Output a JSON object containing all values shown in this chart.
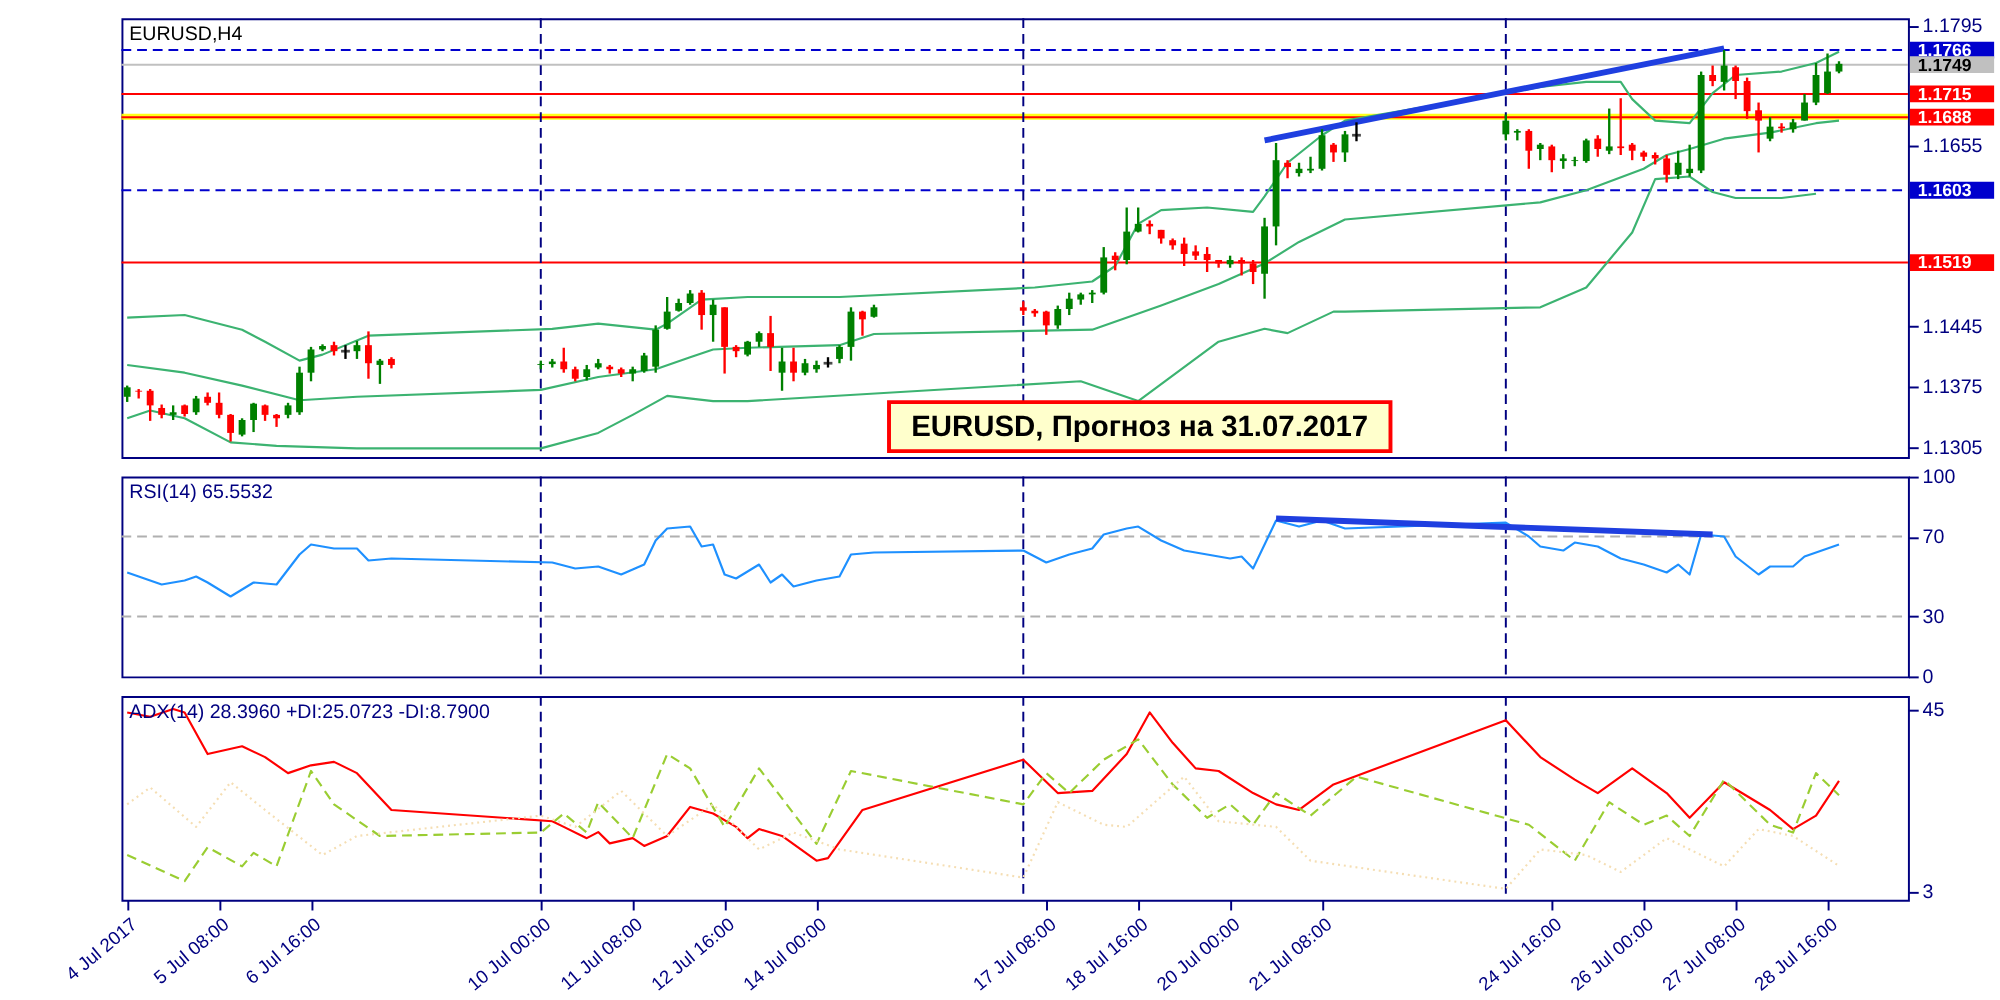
{
  "chart_data": [
    {
      "type": "candlestick",
      "title": "EURUSD,H4",
      "x": [
        "2017-07-04T00:00",
        "2017-07-04T04:00",
        "2017-07-04T08:00",
        "2017-07-04T12:00",
        "2017-07-04T16:00",
        "2017-07-04T20:00",
        "2017-07-05T00:00",
        "2017-07-05T04:00",
        "2017-07-05T08:00",
        "2017-07-05T12:00",
        "2017-07-05T16:00",
        "2017-07-05T20:00",
        "2017-07-06T00:00",
        "2017-07-06T04:00",
        "2017-07-06T08:00",
        "2017-07-06T12:00",
        "2017-07-06T16:00",
        "2017-07-06T20:00",
        "2017-07-07T00:00",
        "2017-07-07T04:00",
        "2017-07-07T08:00",
        "2017-07-07T12:00",
        "2017-07-07T16:00",
        "2017-07-07T20:00",
        "2017-07-10T00:00",
        "2017-07-10T04:00",
        "2017-07-10T08:00",
        "2017-07-10T12:00",
        "2017-07-10T16:00",
        "2017-07-10T20:00",
        "2017-07-11T00:00",
        "2017-07-11T04:00",
        "2017-07-11T08:00",
        "2017-07-11T12:00",
        "2017-07-11T16:00",
        "2017-07-11T20:00",
        "2017-07-12T00:00",
        "2017-07-12T04:00",
        "2017-07-12T08:00",
        "2017-07-12T12:00",
        "2017-07-12T16:00",
        "2017-07-12T20:00",
        "2017-07-13T00:00",
        "2017-07-13T04:00",
        "2017-07-13T08:00",
        "2017-07-13T12:00",
        "2017-07-13T16:00",
        "2017-07-13T20:00",
        "2017-07-14T00:00",
        "2017-07-14T04:00",
        "2017-07-14T08:00",
        "2017-07-14T12:00",
        "2017-07-14T16:00",
        "2017-07-14T20:00",
        "2017-07-17T00:00",
        "2017-07-17T04:00",
        "2017-07-17T08:00",
        "2017-07-17T12:00",
        "2017-07-17T16:00",
        "2017-07-17T20:00",
        "2017-07-18T00:00",
        "2017-07-18T04:00",
        "2017-07-18T08:00",
        "2017-07-18T12:00",
        "2017-07-18T16:00",
        "2017-07-18T20:00",
        "2017-07-19T00:00",
        "2017-07-19T04:00",
        "2017-07-19T08:00",
        "2017-07-19T12:00",
        "2017-07-19T16:00",
        "2017-07-19T20:00",
        "2017-07-20T00:00",
        "2017-07-20T04:00",
        "2017-07-20T08:00",
        "2017-07-20T12:00",
        "2017-07-20T16:00",
        "2017-07-20T20:00",
        "2017-07-21T00:00",
        "2017-07-21T04:00",
        "2017-07-21T08:00",
        "2017-07-21T12:00",
        "2017-07-21T16:00",
        "2017-07-21T20:00",
        "2017-07-24T00:00",
        "2017-07-24T04:00",
        "2017-07-24T08:00",
        "2017-07-24T12:00",
        "2017-07-24T16:00",
        "2017-07-24T20:00",
        "2017-07-25T00:00",
        "2017-07-25T04:00",
        "2017-07-25T08:00",
        "2017-07-25T12:00",
        "2017-07-25T16:00",
        "2017-07-25T20:00",
        "2017-07-26T00:00",
        "2017-07-26T04:00",
        "2017-07-26T08:00",
        "2017-07-26T12:00",
        "2017-07-26T16:00",
        "2017-07-26T20:00",
        "2017-07-27T00:00",
        "2017-07-27T04:00",
        "2017-07-27T08:00",
        "2017-07-27T12:00",
        "2017-07-27T16:00",
        "2017-07-27T20:00",
        "2017-07-28T00:00",
        "2017-07-28T04:00",
        "2017-07-28T08:00",
        "2017-07-28T12:00",
        "2017-07-28T16:00",
        "2017-07-28T20:00"
      ],
      "ohlc": [
        [
          1.1363,
          1.1376,
          1.1357,
          1.1374
        ],
        [
          1.137,
          1.1372,
          1.1361,
          1.1369
        ],
        [
          1.137,
          1.1372,
          1.1335,
          1.1353
        ],
        [
          1.135,
          1.1354,
          1.1338,
          1.1342
        ],
        [
          1.1342,
          1.1353,
          1.1336,
          1.1345
        ],
        [
          1.1353,
          1.1354,
          1.134,
          1.1343
        ],
        [
          1.1345,
          1.1364,
          1.1342,
          1.1361
        ],
        [
          1.1363,
          1.1368,
          1.1353,
          1.1356
        ],
        [
          1.1356,
          1.1368,
          1.1338,
          1.1342
        ],
        [
          1.1342,
          1.1343,
          1.1311,
          1.1321
        ],
        [
          1.1319,
          1.1338,
          1.1317,
          1.1336
        ],
        [
          1.1336,
          1.1356,
          1.1322,
          1.1355
        ],
        [
          1.1353,
          1.1354,
          1.1335,
          1.1342
        ],
        [
          1.1342,
          1.1343,
          1.1328,
          1.1338
        ],
        [
          1.1342,
          1.1356,
          1.1338,
          1.1353
        ],
        [
          1.1345,
          1.1398,
          1.1342,
          1.1391
        ],
        [
          1.1391,
          1.1421,
          1.1381,
          1.1418
        ],
        [
          1.1418,
          1.1424,
          1.1416,
          1.1422
        ],
        [
          1.1423,
          1.1427,
          1.1411,
          1.1416
        ],
        [
          1.1416,
          1.1423,
          1.1407,
          1.1416
        ],
        [
          1.1416,
          1.1428,
          1.1407,
          1.1423
        ],
        [
          1.1423,
          1.1439,
          1.1384,
          1.1402
        ],
        [
          1.14,
          1.1407,
          1.1378,
          1.1405
        ],
        [
          1.1407,
          1.1409,
          1.1396,
          1.14
        ],
        [
          1.14,
          1.1405,
          1.1395,
          1.1401
        ],
        [
          1.1401,
          1.1407,
          1.1397,
          1.1404
        ],
        [
          1.1404,
          1.142,
          1.1391,
          1.1395
        ],
        [
          1.1395,
          1.1398,
          1.1381,
          1.1384
        ],
        [
          1.1386,
          1.14,
          1.1382,
          1.1395
        ],
        [
          1.1397,
          1.1407,
          1.1395,
          1.1402
        ],
        [
          1.1398,
          1.14,
          1.139,
          1.1395
        ],
        [
          1.1395,
          1.1397,
          1.1386,
          1.139
        ],
        [
          1.139,
          1.1398,
          1.1381,
          1.1395
        ],
        [
          1.1393,
          1.1414,
          1.1391,
          1.1411
        ],
        [
          1.1398,
          1.1446,
          1.1391,
          1.1441
        ],
        [
          1.1442,
          1.1479,
          1.1441,
          1.1462
        ],
        [
          1.1463,
          1.1477,
          1.1462,
          1.1472
        ],
        [
          1.1472,
          1.1487,
          1.147,
          1.1483
        ],
        [
          1.1484,
          1.1487,
          1.1441,
          1.1458
        ],
        [
          1.1458,
          1.1476,
          1.1427,
          1.147
        ],
        [
          1.1467,
          1.1467,
          1.139,
          1.1421
        ],
        [
          1.1421,
          1.1423,
          1.1409,
          1.1416
        ],
        [
          1.1412,
          1.1428,
          1.141,
          1.1427
        ],
        [
          1.1427,
          1.1439,
          1.1421,
          1.1437
        ],
        [
          1.1437,
          1.1457,
          1.1393,
          1.1421
        ],
        [
          1.1391,
          1.142,
          1.137,
          1.1404
        ],
        [
          1.1404,
          1.142,
          1.1381,
          1.1391
        ],
        [
          1.1391,
          1.1407,
          1.1388,
          1.1402
        ],
        [
          1.1395,
          1.1405,
          1.1391,
          1.14
        ],
        [
          1.1402,
          1.1409,
          1.1397,
          1.1402
        ],
        [
          1.1407,
          1.1423,
          1.1402,
          1.1421
        ],
        [
          1.1421,
          1.1467,
          1.1405,
          1.1462
        ],
        [
          1.1462,
          1.1463,
          1.1434,
          1.1453
        ],
        [
          1.1456,
          1.147,
          1.1455,
          1.1467
        ],
        [
          1.1467,
          1.1474,
          1.1458,
          1.1463
        ],
        [
          1.1463,
          1.1465,
          1.1456,
          1.146
        ],
        [
          1.1462,
          1.1463,
          1.1435,
          1.1446
        ],
        [
          1.1446,
          1.1469,
          1.1442,
          1.1465
        ],
        [
          1.1465,
          1.1484,
          1.1458,
          1.1477
        ],
        [
          1.1476,
          1.1484,
          1.147,
          1.1482
        ],
        [
          1.1482,
          1.1487,
          1.1472,
          1.1484
        ],
        [
          1.1484,
          1.1537,
          1.1482,
          1.1525
        ],
        [
          1.1527,
          1.1531,
          1.151,
          1.1522
        ],
        [
          1.1522,
          1.1583,
          1.1517,
          1.1555
        ],
        [
          1.1555,
          1.1583,
          1.1554,
          1.1564
        ],
        [
          1.1564,
          1.1568,
          1.1552,
          1.1561
        ],
        [
          1.1557,
          1.1557,
          1.1541,
          1.1547
        ],
        [
          1.1545,
          1.1547,
          1.1534,
          1.1539
        ],
        [
          1.1541,
          1.1548,
          1.1515,
          1.1529
        ],
        [
          1.1532,
          1.1539,
          1.1522,
          1.1527
        ],
        [
          1.1529,
          1.1537,
          1.1508,
          1.1522
        ],
        [
          1.1522,
          1.1522,
          1.1513,
          1.1518
        ],
        [
          1.1517,
          1.1527,
          1.1513,
          1.1522
        ],
        [
          1.1522,
          1.1525,
          1.1504,
          1.1518
        ],
        [
          1.1518,
          1.1522,
          1.1494,
          1.1508
        ],
        [
          1.1506,
          1.1571,
          1.1477,
          1.1561
        ],
        [
          1.1561,
          1.1658,
          1.1539,
          1.1638
        ],
        [
          1.1635,
          1.1638,
          1.1617,
          1.163
        ],
        [
          1.1623,
          1.1635,
          1.1619,
          1.1628
        ],
        [
          1.1626,
          1.1642,
          1.1623,
          1.1628
        ],
        [
          1.1628,
          1.1674,
          1.1626,
          1.1667
        ],
        [
          1.1656,
          1.1658,
          1.1636,
          1.1647
        ],
        [
          1.1647,
          1.1672,
          1.1636,
          1.1668
        ],
        [
          1.1667,
          1.1682,
          1.166,
          1.1667
        ],
        [
          1.1668,
          1.1691,
          1.1661,
          1.1684
        ],
        [
          1.167,
          1.1674,
          1.1661,
          1.1672
        ],
        [
          1.1672,
          1.1674,
          1.1628,
          1.1649
        ],
        [
          1.1651,
          1.1658,
          1.1638,
          1.1656
        ],
        [
          1.1654,
          1.1656,
          1.1624,
          1.1638
        ],
        [
          1.1637,
          1.1645,
          1.1628,
          1.164
        ],
        [
          1.1637,
          1.1642,
          1.1631,
          1.1638
        ],
        [
          1.1637,
          1.1663,
          1.1635,
          1.1661
        ],
        [
          1.1663,
          1.1667,
          1.1642,
          1.1651
        ],
        [
          1.1649,
          1.1698,
          1.1645,
          1.1654
        ],
        [
          1.1654,
          1.171,
          1.1644,
          1.1652
        ],
        [
          1.1656,
          1.1658,
          1.1638,
          1.1649
        ],
        [
          1.1647,
          1.1649,
          1.1637,
          1.1642
        ],
        [
          1.1644,
          1.1647,
          1.1633,
          1.164
        ],
        [
          1.164,
          1.1644,
          1.1612,
          1.1621
        ],
        [
          1.1621,
          1.1649,
          1.1616,
          1.1635
        ],
        [
          1.1623,
          1.1656,
          1.1619,
          1.1628
        ],
        [
          1.1626,
          1.1741,
          1.1623,
          1.1737
        ],
        [
          1.1737,
          1.1748,
          1.1724,
          1.173
        ],
        [
          1.1729,
          1.1766,
          1.1719,
          1.1748
        ],
        [
          1.1746,
          1.1748,
          1.1709,
          1.173
        ],
        [
          1.173,
          1.1734,
          1.1686,
          1.1695
        ],
        [
          1.1696,
          1.1705,
          1.1647,
          1.1684
        ],
        [
          1.1663,
          1.1688,
          1.166,
          1.1677
        ],
        [
          1.1677,
          1.1681,
          1.167,
          1.1675
        ],
        [
          1.1674,
          1.1686,
          1.167,
          1.1682
        ],
        [
          1.1684,
          1.1715,
          1.1684,
          1.1705
        ],
        [
          1.1705,
          1.1751,
          1.1702,
          1.1737
        ],
        [
          1.1716,
          1.1762,
          1.1715,
          1.1741
        ],
        [
          1.1741,
          1.1753,
          1.1739,
          1.175
        ]
      ],
      "colors": [
        "#008000",
        "#ff0000",
        "#ff0000",
        "#ff0000",
        "#008000",
        "#ff0000",
        "#008000",
        "#ff0000",
        "#ff0000",
        "#ff0000",
        "#008000",
        "#008000",
        "#ff0000",
        "#ff0000",
        "#008000",
        "#008000",
        "#008000",
        "#008000",
        "#ff0000",
        "#000000",
        "#008000",
        "#ff0000",
        "#008000",
        "#ff0000",
        "#008000",
        "#008000",
        "#ff0000",
        "#ff0000",
        "#008000",
        "#008000",
        "#ff0000",
        "#ff0000",
        "#008000",
        "#008000",
        "#008000",
        "#008000",
        "#008000",
        "#008000",
        "#ff0000",
        "#008000",
        "#ff0000",
        "#ff0000",
        "#008000",
        "#008000",
        "#ff0000",
        "#008000",
        "#ff0000",
        "#008000",
        "#008000",
        "#000000",
        "#008000",
        "#008000",
        "#ff0000",
        "#008000",
        "#ff0000",
        "#ff0000",
        "#ff0000",
        "#008000",
        "#008000",
        "#008000",
        "#008000",
        "#008000",
        "#ff0000",
        "#008000",
        "#008000",
        "#ff0000",
        "#ff0000",
        "#ff0000",
        "#ff0000",
        "#ff0000",
        "#ff0000",
        "#ff0000",
        "#008000",
        "#ff0000",
        "#ff0000",
        "#008000",
        "#008000",
        "#ff0000",
        "#008000",
        "#008000",
        "#008000",
        "#ff0000",
        "#008000",
        "#000000",
        "#008000",
        "#008000",
        "#ff0000",
        "#008000",
        "#ff0000",
        "#008000",
        "#008000",
        "#008000",
        "#ff0000",
        "#008000",
        "#ff0000",
        "#ff0000",
        "#ff0000",
        "#ff0000",
        "#ff0000",
        "#008000",
        "#008000",
        "#008000",
        "#ff0000",
        "#008000",
        "#ff0000",
        "#ff0000",
        "#ff0000",
        "#008000",
        "#ff0000",
        "#008000",
        "#008000",
        "#008000",
        "#008000",
        "#008000"
      ],
      "series": [
        {
          "type": "line",
          "color": "#3cb371",
          "x": [
            "2017-07-04T00:00",
            "2017-07-04T20:00",
            "2017-07-05T16:00",
            "2017-07-06T00:00",
            "2017-07-06T12:00",
            "2017-07-06T20:00",
            "2017-07-07T12:00",
            "2017-07-10T04:00",
            "2017-07-10T20:00",
            "2017-07-11T16:00",
            "2017-07-11T20:00",
            "2017-07-12T08:00",
            "2017-07-13T00:00",
            "2017-07-14T08:00",
            "2017-07-17T04:00",
            "2017-07-18T00:00",
            "2017-07-18T08:00",
            "2017-07-18T16:00",
            "2017-07-19T00:00",
            "2017-07-19T16:00",
            "2017-07-20T08:00",
            "2017-07-20T12:00",
            "2017-07-20T20:00",
            "2017-07-21T08:00",
            "2017-07-21T16:00",
            "2017-07-24T12:00",
            "2017-07-25T04:00",
            "2017-07-25T16:00",
            "2017-07-25T20:00",
            "2017-07-26T04:00",
            "2017-07-26T16:00",
            "2017-07-27T00:00",
            "2017-07-27T08:00",
            "2017-07-28T00:00",
            "2017-07-28T12:00",
            "2017-07-28T20:00"
          ],
          "values": [
            1.1455,
            1.1458,
            1.1441,
            1.1427,
            1.1405,
            1.1412,
            1.1434,
            1.1442,
            1.1448,
            1.1441,
            1.1448,
            1.1476,
            1.1479,
            1.1479,
            1.149,
            1.1497,
            1.1515,
            1.1564,
            1.158,
            1.1583,
            1.1578,
            1.1596,
            1.1635,
            1.1667,
            1.1684,
            1.1723,
            1.1729,
            1.1729,
            1.1709,
            1.1684,
            1.1681,
            1.1716,
            1.1737,
            1.1741,
            1.1751,
            1.1764
          ]
        },
        {
          "type": "line",
          "color": "#3cb371",
          "x": [
            "2017-07-04T00:00",
            "2017-07-04T20:00",
            "2017-07-05T16:00",
            "2017-07-06T12:00",
            "2017-07-07T08:00",
            "2017-07-10T00:00",
            "2017-07-10T20:00",
            "2017-07-11T16:00",
            "2017-07-12T04:00",
            "2017-07-12T12:00",
            "2017-07-13T00:00",
            "2017-07-14T08:00",
            "2017-07-14T20:00",
            "2017-07-18T00:00",
            "2017-07-19T00:00",
            "2017-07-19T20:00",
            "2017-07-20T12:00",
            "2017-07-21T00:00",
            "2017-07-21T16:00",
            "2017-07-24T12:00",
            "2017-07-25T04:00",
            "2017-07-26T00:00",
            "2017-07-26T08:00",
            "2017-07-26T16:00",
            "2017-07-27T04:00",
            "2017-07-27T20:00",
            "2017-07-28T12:00",
            "2017-07-28T20:00"
          ],
          "values": [
            1.14,
            1.1391,
            1.1376,
            1.1359,
            1.1363,
            1.1371,
            1.1386,
            1.1395,
            1.1409,
            1.1418,
            1.142,
            1.1423,
            1.1436,
            1.1441,
            1.1469,
            1.1494,
            1.1518,
            1.1543,
            1.1569,
            1.1589,
            1.1603,
            1.1628,
            1.1644,
            1.1651,
            1.1663,
            1.167,
            1.1681,
            1.1684
          ]
        },
        {
          "type": "line",
          "color": "#3cb371",
          "x": [
            "2017-07-04T00:00",
            "2017-07-04T08:00",
            "2017-07-04T20:00",
            "2017-07-05T12:00",
            "2017-07-06T04:00",
            "2017-07-07T08:00",
            "2017-07-10T00:00",
            "2017-07-10T20:00",
            "2017-07-11T08:00",
            "2017-07-11T20:00",
            "2017-07-12T12:00",
            "2017-07-13T00:00",
            "2017-07-17T20:00",
            "2017-07-18T16:00",
            "2017-07-19T20:00",
            "2017-07-20T12:00",
            "2017-07-20T20:00",
            "2017-07-21T12:00",
            "2017-07-21T16:00",
            "2017-07-24T12:00",
            "2017-07-25T04:00",
            "2017-07-25T12:00",
            "2017-07-25T20:00",
            "2017-07-26T04:00",
            "2017-07-26T16:00",
            "2017-07-27T00:00",
            "2017-07-27T08:00",
            "2017-07-28T00:00",
            "2017-07-28T12:00"
          ],
          "values": [
            1.1338,
            1.1347,
            1.1338,
            1.131,
            1.1306,
            1.1303,
            1.1303,
            1.1321,
            1.1342,
            1.1364,
            1.1358,
            1.1358,
            1.1381,
            1.1358,
            1.1427,
            1.1442,
            1.1437,
            1.1462,
            1.1462,
            1.1467,
            1.149,
            1.1522,
            1.1554,
            1.1616,
            1.1619,
            1.1601,
            1.1594,
            1.1594,
            1.1599
          ]
        },
        {
          "type": "line",
          "color": "#1f3fe0",
          "x": [
            "2017-07-20T12:00",
            "2017-07-27T04:00"
          ],
          "values": [
            1.1661,
            1.1768
          ]
        }
      ],
      "xlim": [
        "2017-07-03T22:00",
        "2017-07-29T20:00"
      ],
      "ylim": [
        1.1293,
        1.1803
      ],
      "yticks": [
        1.1305,
        1.1375,
        1.1445,
        1.1655,
        1.1795
      ],
      "tick_labels": "y",
      "grid": false,
      "bands": [
        {
          "axis": "y",
          "from": 1.1685,
          "to": 1.1692,
          "color": "#ffff00"
        }
      ],
      "ref_lines": [
        {
          "axis": "y",
          "value": 1.1766,
          "label": "1.1766",
          "color": "#0000cd",
          "line_style": "dashed"
        },
        {
          "axis": "y",
          "value": 1.1749,
          "label": "1.1749",
          "color": "#c0c0c0",
          "line_style": "solid"
        },
        {
          "axis": "y",
          "value": 1.1715,
          "label": "1.1715",
          "color": "#ff0000",
          "line_style": "solid"
        },
        {
          "axis": "y",
          "value": 1.1688,
          "label": "1.1688",
          "color": "#ff0000",
          "line_style": "solid"
        },
        {
          "axis": "y",
          "value": 1.1603,
          "label": "1.1603",
          "color": "#0000cd",
          "line_style": "dashed"
        },
        {
          "axis": "y",
          "value": 1.1519,
          "label": "1.1519",
          "color": "#ff0000",
          "line_style": "solid"
        },
        {
          "axis": "x",
          "value": "2017-07-10T00:00",
          "color": "#000080",
          "line_style": "dashed"
        },
        {
          "axis": "x",
          "value": "2017-07-17T00:00",
          "color": "#000080",
          "line_style": "dashed"
        },
        {
          "axis": "x",
          "value": "2017-07-24T00:00",
          "color": "#000080",
          "line_style": "dashed"
        }
      ],
      "annotations": [
        "EURUSD, Прогноз на 31.07.2017"
      ]
    },
    {
      "type": "line",
      "title": "RSI(14) 65.5532",
      "series": [
        {
          "color": "#1e90ff",
          "x": [
            "2017-07-04T00:00",
            "2017-07-04T12:00",
            "2017-07-04T20:00",
            "2017-07-05T00:00",
            "2017-07-05T04:00",
            "2017-07-05T12:00",
            "2017-07-05T20:00",
            "2017-07-06T04:00",
            "2017-07-06T12:00",
            "2017-07-06T16:00",
            "2017-07-07T00:00",
            "2017-07-07T08:00",
            "2017-07-07T12:00",
            "2017-07-07T20:00",
            "2017-07-10T04:00",
            "2017-07-10T12:00",
            "2017-07-10T20:00",
            "2017-07-11T04:00",
            "2017-07-11T12:00",
            "2017-07-11T16:00",
            "2017-07-11T20:00",
            "2017-07-12T04:00",
            "2017-07-12T08:00",
            "2017-07-12T12:00",
            "2017-07-12T16:00",
            "2017-07-12T20:00",
            "2017-07-13T04:00",
            "2017-07-13T08:00",
            "2017-07-13T12:00",
            "2017-07-13T16:00",
            "2017-07-14T00:00",
            "2017-07-14T08:00",
            "2017-07-14T12:00",
            "2017-07-14T20:00",
            "2017-07-17T00:00",
            "2017-07-17T04:00",
            "2017-07-17T08:00",
            "2017-07-17T16:00",
            "2017-07-18T00:00",
            "2017-07-18T04:00",
            "2017-07-18T12:00",
            "2017-07-18T16:00",
            "2017-07-19T00:00",
            "2017-07-19T08:00",
            "2017-07-19T16:00",
            "2017-07-20T00:00",
            "2017-07-20T04:00",
            "2017-07-20T08:00",
            "2017-07-20T16:00",
            "2017-07-21T00:00",
            "2017-07-21T08:00",
            "2017-07-21T16:00",
            "2017-07-24T00:00",
            "2017-07-24T08:00",
            "2017-07-24T12:00",
            "2017-07-24T20:00",
            "2017-07-25T00:00",
            "2017-07-25T08:00",
            "2017-07-25T16:00",
            "2017-07-26T00:00",
            "2017-07-26T08:00",
            "2017-07-26T12:00",
            "2017-07-26T16:00",
            "2017-07-26T20:00",
            "2017-07-27T04:00",
            "2017-07-27T08:00",
            "2017-07-27T16:00",
            "2017-07-27T20:00",
            "2017-07-28T04:00",
            "2017-07-28T08:00",
            "2017-07-28T20:00"
          ],
          "values": [
            52,
            46,
            48,
            50,
            47,
            40,
            47,
            46,
            61,
            66,
            64,
            64,
            58,
            59,
            57,
            54,
            55,
            51,
            56,
            68,
            74,
            75,
            65,
            66,
            51,
            49,
            56,
            47,
            51,
            45,
            48,
            50,
            61,
            62,
            63,
            60,
            57,
            61,
            64,
            71,
            74,
            75,
            68,
            63,
            61,
            59,
            60,
            54,
            78,
            75,
            78,
            74,
            77,
            70,
            65,
            63,
            67,
            65,
            59,
            56,
            52,
            56,
            51,
            71,
            70,
            60,
            51,
            55,
            55,
            60,
            66
          ]
        },
        {
          "type": "line",
          "color": "#1f3fe0",
          "x": [
            "2017-07-20T16:00",
            "2017-07-27T00:00"
          ],
          "values": [
            79,
            71
          ]
        }
      ],
      "xlim": [
        "2017-07-03T22:00",
        "2017-07-29T20:00"
      ],
      "ylim": [
        0,
        100
      ],
      "yticks": [
        0,
        30,
        70,
        100
      ],
      "tick_labels": "y",
      "grid": false,
      "ref_lines": [
        {
          "axis": "y",
          "value": 70,
          "color": "#b0b0b0",
          "line_style": "dashed"
        },
        {
          "axis": "y",
          "value": 30,
          "color": "#b0b0b0",
          "line_style": "dashed"
        },
        {
          "axis": "x",
          "value": "2017-07-10T00:00",
          "color": "#000080",
          "line_style": "dashed"
        },
        {
          "axis": "x",
          "value": "2017-07-17T00:00",
          "color": "#000080",
          "line_style": "dashed"
        },
        {
          "axis": "x",
          "value": "2017-07-24T00:00",
          "color": "#000080",
          "line_style": "dashed"
        }
      ]
    },
    {
      "type": "line",
      "title": "ADX(14) 28.3960 +DI:25.0723 -DI:8.7900",
      "series": [
        {
          "color": "#ff0000",
          "line_style": "solid",
          "x": [
            "2017-07-04T00:00",
            "2017-07-04T08:00",
            "2017-07-04T16:00",
            "2017-07-04T20:00",
            "2017-07-05T04:00",
            "2017-07-05T16:00",
            "2017-07-06T00:00",
            "2017-07-06T08:00",
            "2017-07-06T16:00",
            "2017-07-07T00:00",
            "2017-07-07T08:00",
            "2017-07-07T20:00",
            "2017-07-10T04:00",
            "2017-07-10T08:00",
            "2017-07-10T16:00",
            "2017-07-10T20:00",
            "2017-07-11T00:00",
            "2017-07-11T08:00",
            "2017-07-11T12:00",
            "2017-07-11T20:00",
            "2017-07-12T04:00",
            "2017-07-12T12:00",
            "2017-07-12T20:00",
            "2017-07-13T00:00",
            "2017-07-13T04:00",
            "2017-07-13T12:00",
            "2017-07-14T00:00",
            "2017-07-14T04:00",
            "2017-07-14T16:00",
            "2017-07-17T00:00",
            "2017-07-17T12:00",
            "2017-07-18T00:00",
            "2017-07-18T12:00",
            "2017-07-18T20:00",
            "2017-07-19T04:00",
            "2017-07-19T12:00",
            "2017-07-19T20:00",
            "2017-07-20T08:00",
            "2017-07-20T16:00",
            "2017-07-21T00:00",
            "2017-07-21T12:00",
            "2017-07-24T00:00",
            "2017-07-24T12:00",
            "2017-07-25T00:00",
            "2017-07-25T08:00",
            "2017-07-25T20:00",
            "2017-07-26T08:00",
            "2017-07-26T16:00",
            "2017-07-27T04:00",
            "2017-07-27T20:00",
            "2017-07-28T04:00",
            "2017-07-28T12:00",
            "2017-07-28T20:00"
          ],
          "values": [
            44.2,
            43.2,
            45.0,
            44.2,
            34.6,
            36.4,
            33.9,
            30.2,
            32.0,
            32.8,
            30.2,
            21.7,
            19.1,
            17.8,
            15.2,
            16.6,
            14.0,
            15.2,
            13.4,
            15.7,
            22.4,
            20.9,
            17.8,
            15.2,
            17.3,
            15.7,
            10.0,
            10.6,
            21.7,
            33.3,
            25.6,
            26.1,
            34.6,
            44.2,
            37.2,
            31.3,
            30.7,
            25.6,
            23.0,
            21.7,
            27.6,
            42.4,
            33.9,
            28.7,
            25.6,
            31.3,
            25.6,
            19.9,
            28.1,
            21.7,
            17.3,
            20.4,
            28.4
          ]
        },
        {
          "color": "#9acd32",
          "line_style": "dashed",
          "x": [
            "2017-07-04T00:00",
            "2017-07-04T20:00",
            "2017-07-05T04:00",
            "2017-07-05T16:00",
            "2017-07-05T20:00",
            "2017-07-06T04:00",
            "2017-07-06T16:00",
            "2017-07-07T00:00",
            "2017-07-07T16:00",
            "2017-07-10T00:00",
            "2017-07-10T08:00",
            "2017-07-10T16:00",
            "2017-07-10T20:00",
            "2017-07-11T08:00",
            "2017-07-11T20:00",
            "2017-07-12T04:00",
            "2017-07-12T16:00",
            "2017-07-13T04:00",
            "2017-07-13T16:00",
            "2017-07-14T00:00",
            "2017-07-14T12:00",
            "2017-07-17T00:00",
            "2017-07-17T08:00",
            "2017-07-17T16:00",
            "2017-07-18T04:00",
            "2017-07-18T16:00",
            "2017-07-19T04:00",
            "2017-07-19T16:00",
            "2017-07-20T00:00",
            "2017-07-20T08:00",
            "2017-07-20T16:00",
            "2017-07-21T04:00",
            "2017-07-21T20:00",
            "2017-07-24T08:00",
            "2017-07-25T00:00",
            "2017-07-25T12:00",
            "2017-07-26T00:00",
            "2017-07-26T08:00",
            "2017-07-26T16:00",
            "2017-07-27T04:00",
            "2017-07-27T20:00",
            "2017-07-28T04:00",
            "2017-07-28T12:00",
            "2017-07-28T20:00"
          ],
          "values": [
            11.3,
            5.3,
            13.1,
            8.7,
            11.8,
            8.7,
            30.7,
            23.0,
            15.7,
            16.5,
            20.9,
            16.5,
            23.5,
            15.2,
            34.6,
            31.3,
            17.8,
            31.3,
            20.9,
            13.9,
            30.7,
            23.0,
            30.2,
            25.6,
            33.3,
            38.0,
            27.6,
            19.9,
            23.0,
            18.3,
            25.6,
            20.4,
            29.4,
            18.3,
            10.0,
            23.5,
            18.3,
            20.4,
            15.7,
            28.7,
            18.3,
            16.5,
            30.2,
            25.1
          ]
        },
        {
          "color": "#f5deb3",
          "line_style": "dotted",
          "x": [
            "2017-07-04T00:00",
            "2017-07-04T08:00",
            "2017-07-05T00:00",
            "2017-07-05T12:00",
            "2017-07-06T00:00",
            "2017-07-06T20:00",
            "2017-07-07T08:00",
            "2017-07-10T00:00",
            "2017-07-10T12:00",
            "2017-07-11T04:00",
            "2017-07-11T20:00",
            "2017-07-12T12:00",
            "2017-07-13T04:00",
            "2017-07-13T16:00",
            "2017-07-14T08:00",
            "2017-07-17T00:00",
            "2017-07-17T12:00",
            "2017-07-18T04:00",
            "2017-07-18T12:00",
            "2017-07-19T08:00",
            "2017-07-19T20:00",
            "2017-07-20T16:00",
            "2017-07-21T04:00",
            "2017-07-24T00:00",
            "2017-07-24T12:00",
            "2017-07-25T04:00",
            "2017-07-25T16:00",
            "2017-07-26T08:00",
            "2017-07-27T04:00",
            "2017-07-27T16:00",
            "2017-07-28T04:00",
            "2017-07-28T20:00"
          ],
          "values": [
            23.0,
            26.9,
            17.8,
            28.1,
            21.7,
            11.3,
            15.7,
            20.4,
            17.8,
            26.1,
            15.7,
            23.0,
            12.6,
            16.5,
            12.6,
            6.1,
            23.5,
            18.3,
            17.8,
            29.4,
            19.1,
            17.8,
            10.0,
            3.5,
            12.6,
            11.3,
            7.4,
            15.2,
            8.7,
            17.3,
            15.7,
            8.8
          ]
        }
      ],
      "xlim": [
        "2017-07-03T22:00",
        "2017-07-29T20:00"
      ],
      "ylim": [
        1,
        48
      ],
      "yticks": [
        3,
        45
      ],
      "xticks": [
        {
          "value": "2017-07-04T00:00",
          "label": "4 Jul 2017"
        },
        {
          "value": "2017-07-05T08:00",
          "label": "5 Jul 08:00"
        },
        {
          "value": "2017-07-06T16:00",
          "label": "6 Jul 16:00"
        },
        {
          "value": "2017-07-10T00:00",
          "label": "10 Jul 00:00"
        },
        {
          "value": "2017-07-11T08:00",
          "label": "11 Jul 08:00"
        },
        {
          "value": "2017-07-12T16:00",
          "label": "12 Jul 16:00"
        },
        {
          "value": "2017-07-14T00:00",
          "label": "14 Jul 00:00"
        },
        {
          "value": "2017-07-17T08:00",
          "label": "17 Jul 08:00"
        },
        {
          "value": "2017-07-18T16:00",
          "label": "18 Jul 16:00"
        },
        {
          "value": "2017-07-20T00:00",
          "label": "20 Jul 00:00"
        },
        {
          "value": "2017-07-21T08:00",
          "label": "21 Jul 08:00"
        },
        {
          "value": "2017-07-24T16:00",
          "label": "24 Jul 16:00"
        },
        {
          "value": "2017-07-26T00:00",
          "label": "26 Jul 00:00"
        },
        {
          "value": "2017-07-27T08:00",
          "label": "27 Jul 08:00"
        },
        {
          "value": "2017-07-28T16:00",
          "label": "28 Jul 16:00"
        }
      ],
      "grid": false,
      "ref_lines": [
        {
          "axis": "x",
          "value": "2017-07-10T00:00",
          "color": "#000080",
          "line_style": "dashed"
        },
        {
          "axis": "x",
          "value": "2017-07-17T00:00",
          "color": "#000080",
          "line_style": "dashed"
        },
        {
          "axis": "x",
          "value": "2017-07-24T00:00",
          "color": "#000080",
          "line_style": "dashed"
        }
      ]
    }
  ]
}
